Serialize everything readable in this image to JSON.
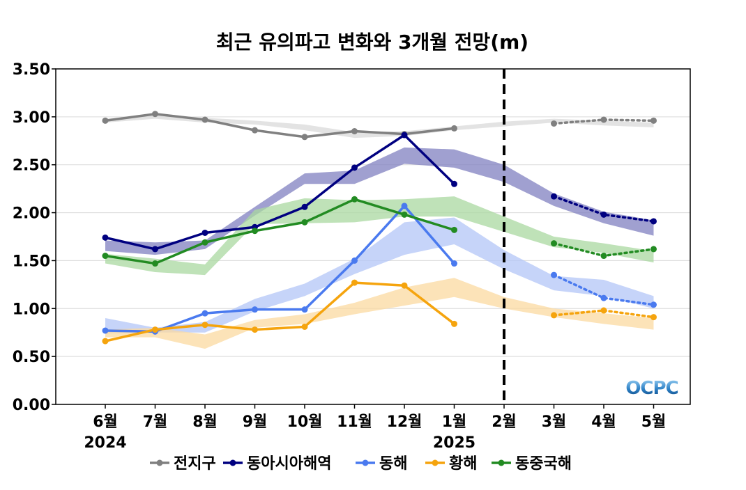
{
  "chart_data": {
    "type": "line",
    "title": "최근 유의파고 변화와 3개월 전망(m)",
    "categories": [
      "6월",
      "7월",
      "8월",
      "9월",
      "10월",
      "11월",
      "12월",
      "1월",
      "2월",
      "3월",
      "4월",
      "5월"
    ],
    "year_labels": [
      {
        "index": 0,
        "label": "2024"
      },
      {
        "index": 7,
        "label": "2025"
      }
    ],
    "yticks": [
      "0.00",
      "0.50",
      "1.00",
      "1.50",
      "2.00",
      "2.50",
      "3.00",
      "3.50"
    ],
    "ylim": [
      0,
      3.5
    ],
    "grid": true,
    "forecast_start_category": "2월",
    "legend_position": "bottom",
    "logo_text": "OCPC",
    "series": [
      {
        "name": "전지구",
        "color": "#808080",
        "band_color": "#d9d9d9",
        "observed": [
          2.96,
          3.03,
          2.97,
          2.86,
          2.79,
          2.85,
          2.82,
          2.88,
          null,
          null,
          null,
          null
        ],
        "forecast": [
          null,
          null,
          null,
          null,
          null,
          null,
          null,
          null,
          null,
          2.93,
          2.97,
          2.96
        ],
        "band_low": [
          2.94,
          2.98,
          2.94,
          2.92,
          2.86,
          2.78,
          2.8,
          2.86,
          2.9,
          2.94,
          2.91,
          2.89
        ],
        "band_high": [
          2.98,
          3.02,
          2.99,
          2.96,
          2.92,
          2.84,
          2.85,
          2.9,
          2.95,
          2.98,
          2.96,
          2.94
        ]
      },
      {
        "name": "동아시아해역",
        "color": "#000080",
        "band_color": "#8080c0",
        "observed": [
          1.74,
          1.62,
          1.79,
          1.85,
          2.06,
          2.47,
          2.81,
          2.3,
          null,
          null,
          null,
          null
        ],
        "forecast": [
          null,
          null,
          null,
          null,
          null,
          null,
          null,
          null,
          null,
          2.17,
          1.98,
          1.91
        ],
        "band_low": [
          1.6,
          1.56,
          1.62,
          1.97,
          2.3,
          2.3,
          2.51,
          2.47,
          2.32,
          2.07,
          1.89,
          1.76
        ],
        "band_high": [
          1.71,
          1.69,
          1.71,
          2.06,
          2.41,
          2.44,
          2.68,
          2.66,
          2.5,
          2.2,
          2.01,
          1.92
        ]
      },
      {
        "name": "동해",
        "color": "#4a7aef",
        "band_color": "#b3c6f7",
        "observed": [
          0.77,
          0.76,
          0.95,
          0.99,
          0.99,
          1.5,
          2.07,
          1.47,
          null,
          null,
          null,
          null
        ],
        "forecast": [
          null,
          null,
          null,
          null,
          null,
          null,
          null,
          null,
          null,
          1.35,
          1.11,
          1.04
        ],
        "band_low": [
          0.74,
          0.75,
          0.75,
          0.97,
          1.13,
          1.36,
          1.56,
          1.67,
          1.41,
          1.19,
          1.13,
          1.0
        ],
        "band_high": [
          0.9,
          0.8,
          0.86,
          1.1,
          1.26,
          1.52,
          1.9,
          1.95,
          1.61,
          1.34,
          1.3,
          1.13
        ]
      },
      {
        "name": "황해",
        "color": "#f5a40e",
        "band_color": "#fbd9a0",
        "observed": [
          0.66,
          0.78,
          0.83,
          0.78,
          0.81,
          1.27,
          1.24,
          0.84,
          null,
          null,
          null,
          null
        ],
        "forecast": [
          null,
          null,
          null,
          null,
          null,
          null,
          null,
          null,
          null,
          0.93,
          0.98,
          0.91
        ],
        "band_low": [
          0.7,
          0.7,
          0.58,
          0.8,
          0.84,
          0.94,
          1.03,
          1.12,
          1.0,
          0.91,
          0.84,
          0.78
        ],
        "band_high": [
          0.78,
          0.8,
          0.73,
          0.88,
          0.94,
          1.06,
          1.22,
          1.32,
          1.12,
          1.0,
          0.95,
          0.9
        ]
      },
      {
        "name": "동중국해",
        "color": "#228b22",
        "band_color": "#a9d8a0",
        "observed": [
          1.55,
          1.47,
          1.69,
          1.81,
          1.9,
          2.14,
          1.98,
          1.82,
          null,
          null,
          null,
          null
        ],
        "forecast": [
          null,
          null,
          null,
          null,
          null,
          null,
          null,
          null,
          null,
          1.68,
          1.55,
          1.62
        ],
        "band_low": [
          1.47,
          1.38,
          1.35,
          1.88,
          1.89,
          1.9,
          1.96,
          1.96,
          1.8,
          1.64,
          1.58,
          1.48
        ],
        "band_high": [
          1.57,
          1.52,
          1.46,
          2.03,
          2.15,
          2.13,
          2.14,
          2.17,
          1.96,
          1.75,
          1.68,
          1.6
        ]
      }
    ]
  }
}
